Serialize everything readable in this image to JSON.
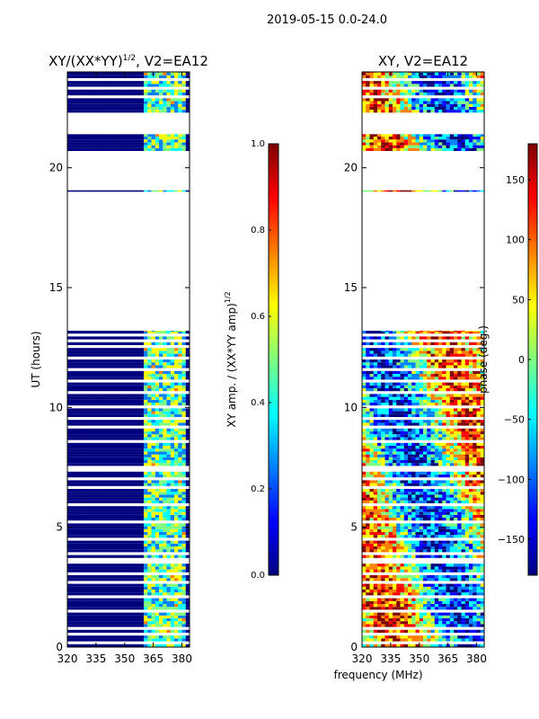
{
  "suptitle": "2019-05-15 0.0-24.0",
  "xlabel_shared": "frequency (MHz)",
  "colors": {
    "jet": [
      "#00007f",
      "#0000ff",
      "#007fff",
      "#00ffff",
      "#7fff7f",
      "#ffff00",
      "#ff7f00",
      "#ff0000",
      "#7f0000"
    ],
    "flag": "#ffffff",
    "frame": "#000000"
  },
  "chart_data": [
    {
      "type": "heatmap",
      "title": "XY/(XX*YY)",
      "title_sup": "1/2",
      "title_suffix": ", V2=EA12",
      "ylabel": "UT (hours)",
      "xlim": [
        320,
        384
      ],
      "ylim": [
        0,
        24
      ],
      "xticks": [
        320,
        335,
        350,
        365,
        380
      ],
      "yticks": [
        0,
        5,
        10,
        15,
        20
      ],
      "low_freq_end": 360,
      "data_bands": [
        [
          0,
          13.2
        ],
        [
          20.7,
          21.4
        ],
        [
          22.3,
          24.0
        ]
      ],
      "data_lines": [
        19.0
      ],
      "flag_gaps": [
        0.1,
        0.45,
        0.7,
        1.4,
        2.1,
        2.6,
        3.0,
        3.5,
        3.6,
        3.9,
        4.5,
        5.2,
        5.9,
        6.6,
        7.0,
        7.3,
        7.5,
        8.5,
        9.1,
        9.5,
        10.0,
        10.5,
        11.0,
        11.5,
        12.0,
        12.5,
        12.7,
        13.0,
        22.9,
        23.3,
        23.6
      ],
      "colorbar": {
        "ticks": [
          0.0,
          0.2,
          0.4,
          0.6,
          0.8,
          1.0
        ],
        "label": "XY amp. / (XX*YY amp)",
        "label_sup": "1/2",
        "range": [
          0,
          1
        ]
      }
    },
    {
      "type": "heatmap",
      "title": "XY, V2=EA12",
      "xlim": [
        320,
        384
      ],
      "ylim": [
        0,
        24
      ],
      "xticks": [
        320,
        335,
        350,
        365,
        380
      ],
      "yticks": [
        0,
        5,
        10,
        15,
        20
      ],
      "data_bands": [
        [
          0,
          13.2
        ],
        [
          20.7,
          21.4
        ],
        [
          22.3,
          24.0
        ]
      ],
      "data_lines": [
        19.0
      ],
      "flag_gaps": [
        0.1,
        0.45,
        0.7,
        1.4,
        2.1,
        2.6,
        3.0,
        3.5,
        3.6,
        3.9,
        4.5,
        5.2,
        5.9,
        6.6,
        7.0,
        7.3,
        7.5,
        8.5,
        9.1,
        9.5,
        10.0,
        10.5,
        11.0,
        11.5,
        12.0,
        12.5,
        12.7,
        13.0,
        22.9,
        23.3,
        23.6
      ],
      "colorbar": {
        "ticks": [
          -150,
          -100,
          -50,
          0,
          50,
          100,
          150
        ],
        "label": "phase (deg.)",
        "range": [
          -180,
          180
        ]
      }
    }
  ]
}
